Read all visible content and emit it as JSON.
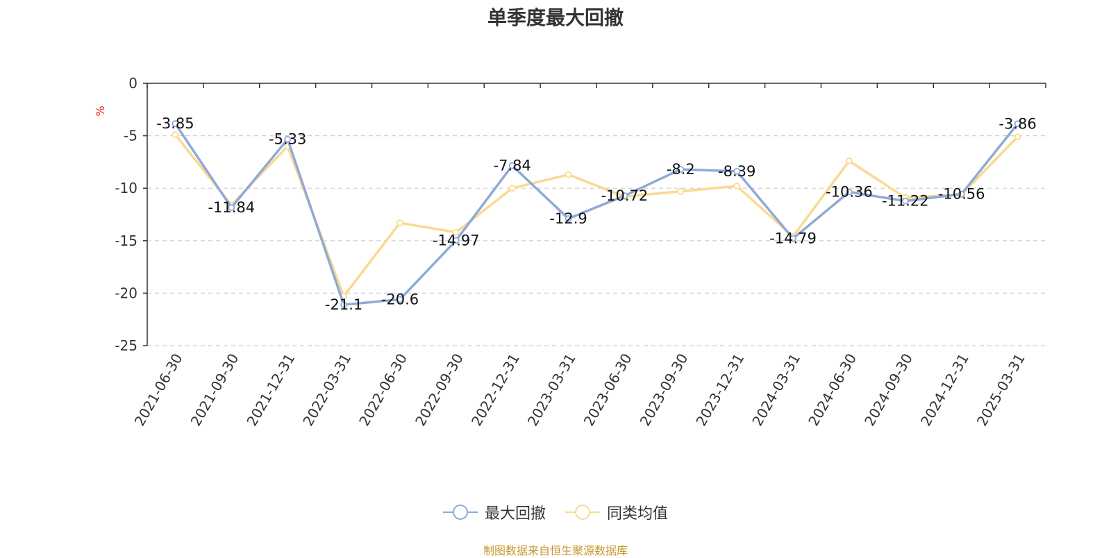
{
  "chart_data": {
    "type": "line",
    "title": "单季度最大回撤",
    "ylabel": "%",
    "ylim": [
      -25,
      0
    ],
    "yticks": [
      0,
      -5,
      -10,
      -15,
      -20,
      -25
    ],
    "grid": true,
    "legend_position": "bottom",
    "categories": [
      "2021-06-30",
      "2021-09-30",
      "2021-12-31",
      "2022-03-31",
      "2022-06-30",
      "2022-09-30",
      "2022-12-31",
      "2023-03-31",
      "2023-06-30",
      "2023-09-30",
      "2023-12-31",
      "2024-03-31",
      "2024-06-30",
      "2024-09-30",
      "2024-12-31",
      "2025-03-31"
    ],
    "series": [
      {
        "name": "最大回撤",
        "color": "#8eaad8",
        "values": [
          -3.85,
          -11.84,
          -5.33,
          -21.1,
          -20.6,
          -14.97,
          -7.84,
          -12.9,
          -10.72,
          -8.2,
          -8.39,
          -14.79,
          -10.36,
          -11.22,
          -10.56,
          -3.86
        ],
        "labels": [
          "-3.85",
          "-11.84",
          "-5.33",
          "-21.1",
          "-20.6",
          "-14.97",
          "-7.84",
          "-12.9",
          "-10.72",
          "-8.2",
          "-8.39",
          "-14.79",
          "-10.36",
          "-11.22",
          "-10.56",
          "-3.86"
        ]
      },
      {
        "name": "同类均值",
        "color": "#fad991",
        "values": [
          -4.9,
          -11.6,
          -6.0,
          -20.3,
          -13.3,
          -14.2,
          -10.0,
          -8.7,
          -10.8,
          -10.3,
          -9.8,
          -14.6,
          -7.4,
          -10.9,
          -10.6,
          -5.1
        ]
      }
    ]
  },
  "source": "制图数据来自恒生聚源数据库"
}
